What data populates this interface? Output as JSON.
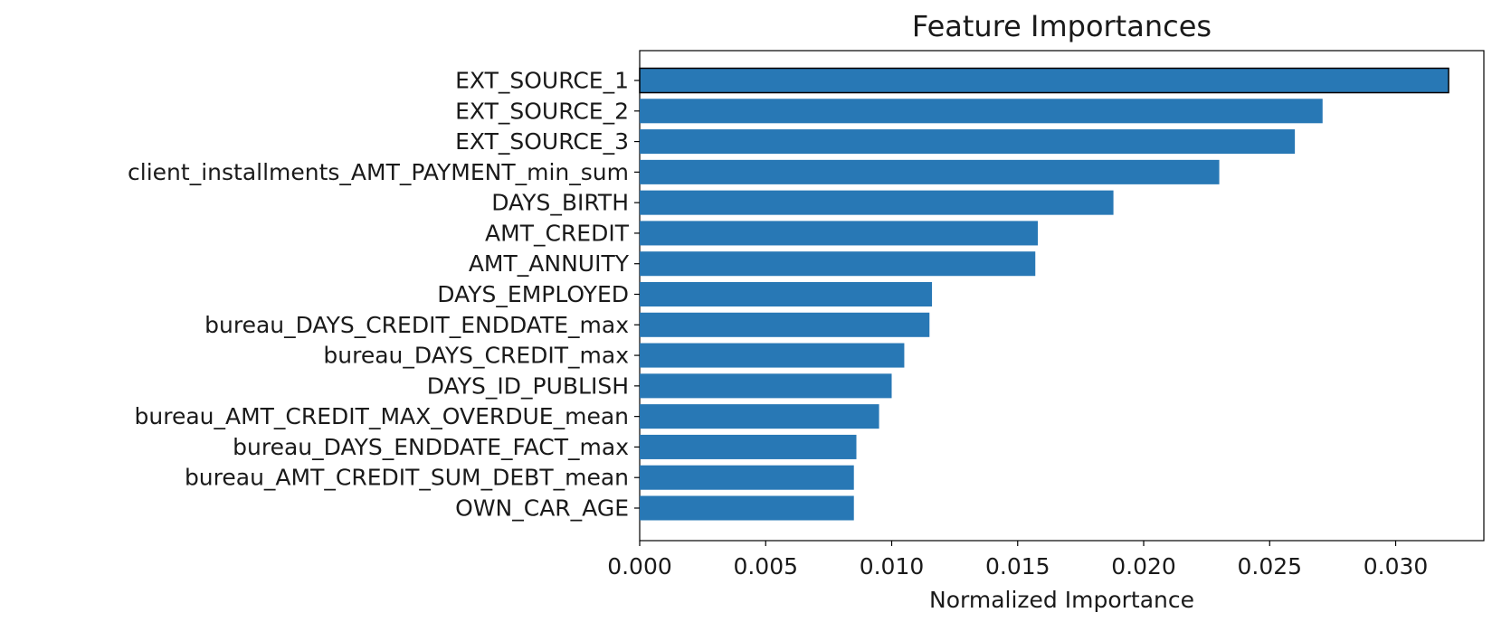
{
  "chart_data": {
    "type": "bar",
    "orientation": "horizontal",
    "title": "Feature Importances",
    "xlabel": "Normalized Importance",
    "ylabel": "",
    "categories": [
      "EXT_SOURCE_1",
      "EXT_SOURCE_2",
      "EXT_SOURCE_3",
      "client_installments_AMT_PAYMENT_min_sum",
      "DAYS_BIRTH",
      "AMT_CREDIT",
      "AMT_ANNUITY",
      "DAYS_EMPLOYED",
      "bureau_DAYS_CREDIT_ENDDATE_max",
      "bureau_DAYS_CREDIT_max",
      "DAYS_ID_PUBLISH",
      "bureau_AMT_CREDIT_MAX_OVERDUE_mean",
      "bureau_DAYS_ENDDATE_FACT_max",
      "bureau_AMT_CREDIT_SUM_DEBT_mean",
      "OWN_CAR_AGE"
    ],
    "values": [
      0.0321,
      0.0271,
      0.026,
      0.023,
      0.0188,
      0.0158,
      0.0157,
      0.0116,
      0.0115,
      0.0105,
      0.01,
      0.0095,
      0.0086,
      0.0085,
      0.0085
    ],
    "xlim": [
      0.0,
      0.0335
    ],
    "x_ticks": [
      "0.000",
      "0.005",
      "0.010",
      "0.015",
      "0.020",
      "0.025",
      "0.030"
    ],
    "x_tick_values": [
      0.0,
      0.005,
      0.01,
      0.015,
      0.02,
      0.025,
      0.03
    ],
    "bar_color": "#2878b5",
    "highlight_edge_color": "#000000",
    "highlighted_index": 0,
    "grid": false,
    "legend": "none"
  }
}
